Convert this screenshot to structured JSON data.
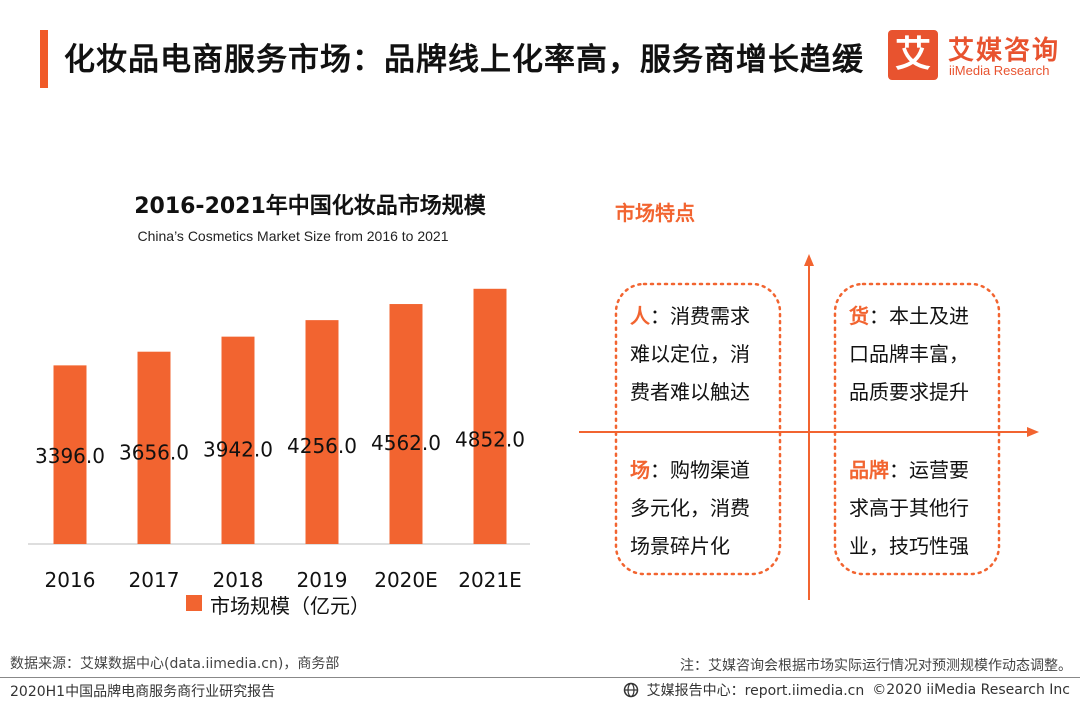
{
  "header": {
    "title": "化妆品电商服务市场：品牌线上化率高，服务商增长趋缓",
    "accent_color": "#f05a28"
  },
  "logo": {
    "mark": "艾",
    "cn": "艾媒咨询",
    "en": "iiMedia Research"
  },
  "chart_data": {
    "type": "bar",
    "title": "2016-2021年中国化妆品市场规模",
    "subtitle": "China’s Cosmetics Market Size from 2016 to 2021",
    "categories": [
      "2016",
      "2017",
      "2018",
      "2019",
      "2020E",
      "2021E"
    ],
    "series": [
      {
        "name": "市场规模（亿元）",
        "values": [
          3396.0,
          3656.0,
          3942.0,
          4256.0,
          4562.0,
          4852.0
        ],
        "color": "#f26430"
      }
    ],
    "data_labels": [
      "3396.0",
      "3656.0",
      "3942.0",
      "4256.0",
      "4562.0",
      "4852.0"
    ],
    "ylim": [
      0,
      5000
    ],
    "xlabel": "",
    "ylabel": "",
    "grid": false,
    "legend": "bottom"
  },
  "features": {
    "title": "市场特点",
    "quadrants": [
      {
        "key": "人",
        "text": "：消费需求难以定位，消费者难以触达"
      },
      {
        "key": "货",
        "text": "：本土及进口品牌丰富，品质要求提升"
      },
      {
        "key": "场",
        "text": "：购物渠道多元化，消费场景碎片化"
      },
      {
        "key": "品牌",
        "text": "：运营要求高于其他行业，技巧性强"
      }
    ]
  },
  "footer": {
    "source": "数据来源：艾媒数据中心(data.iimedia.cn)，商务部",
    "note": "注：艾媒咨询会根据市场实际运行情况对预测规模作动态调整。",
    "report": "2020H1中国品牌电商服务商行业研究报告",
    "site": "艾媒报告中心：report.iimedia.cn",
    "copyright": "©2020  iiMedia Research  Inc"
  }
}
